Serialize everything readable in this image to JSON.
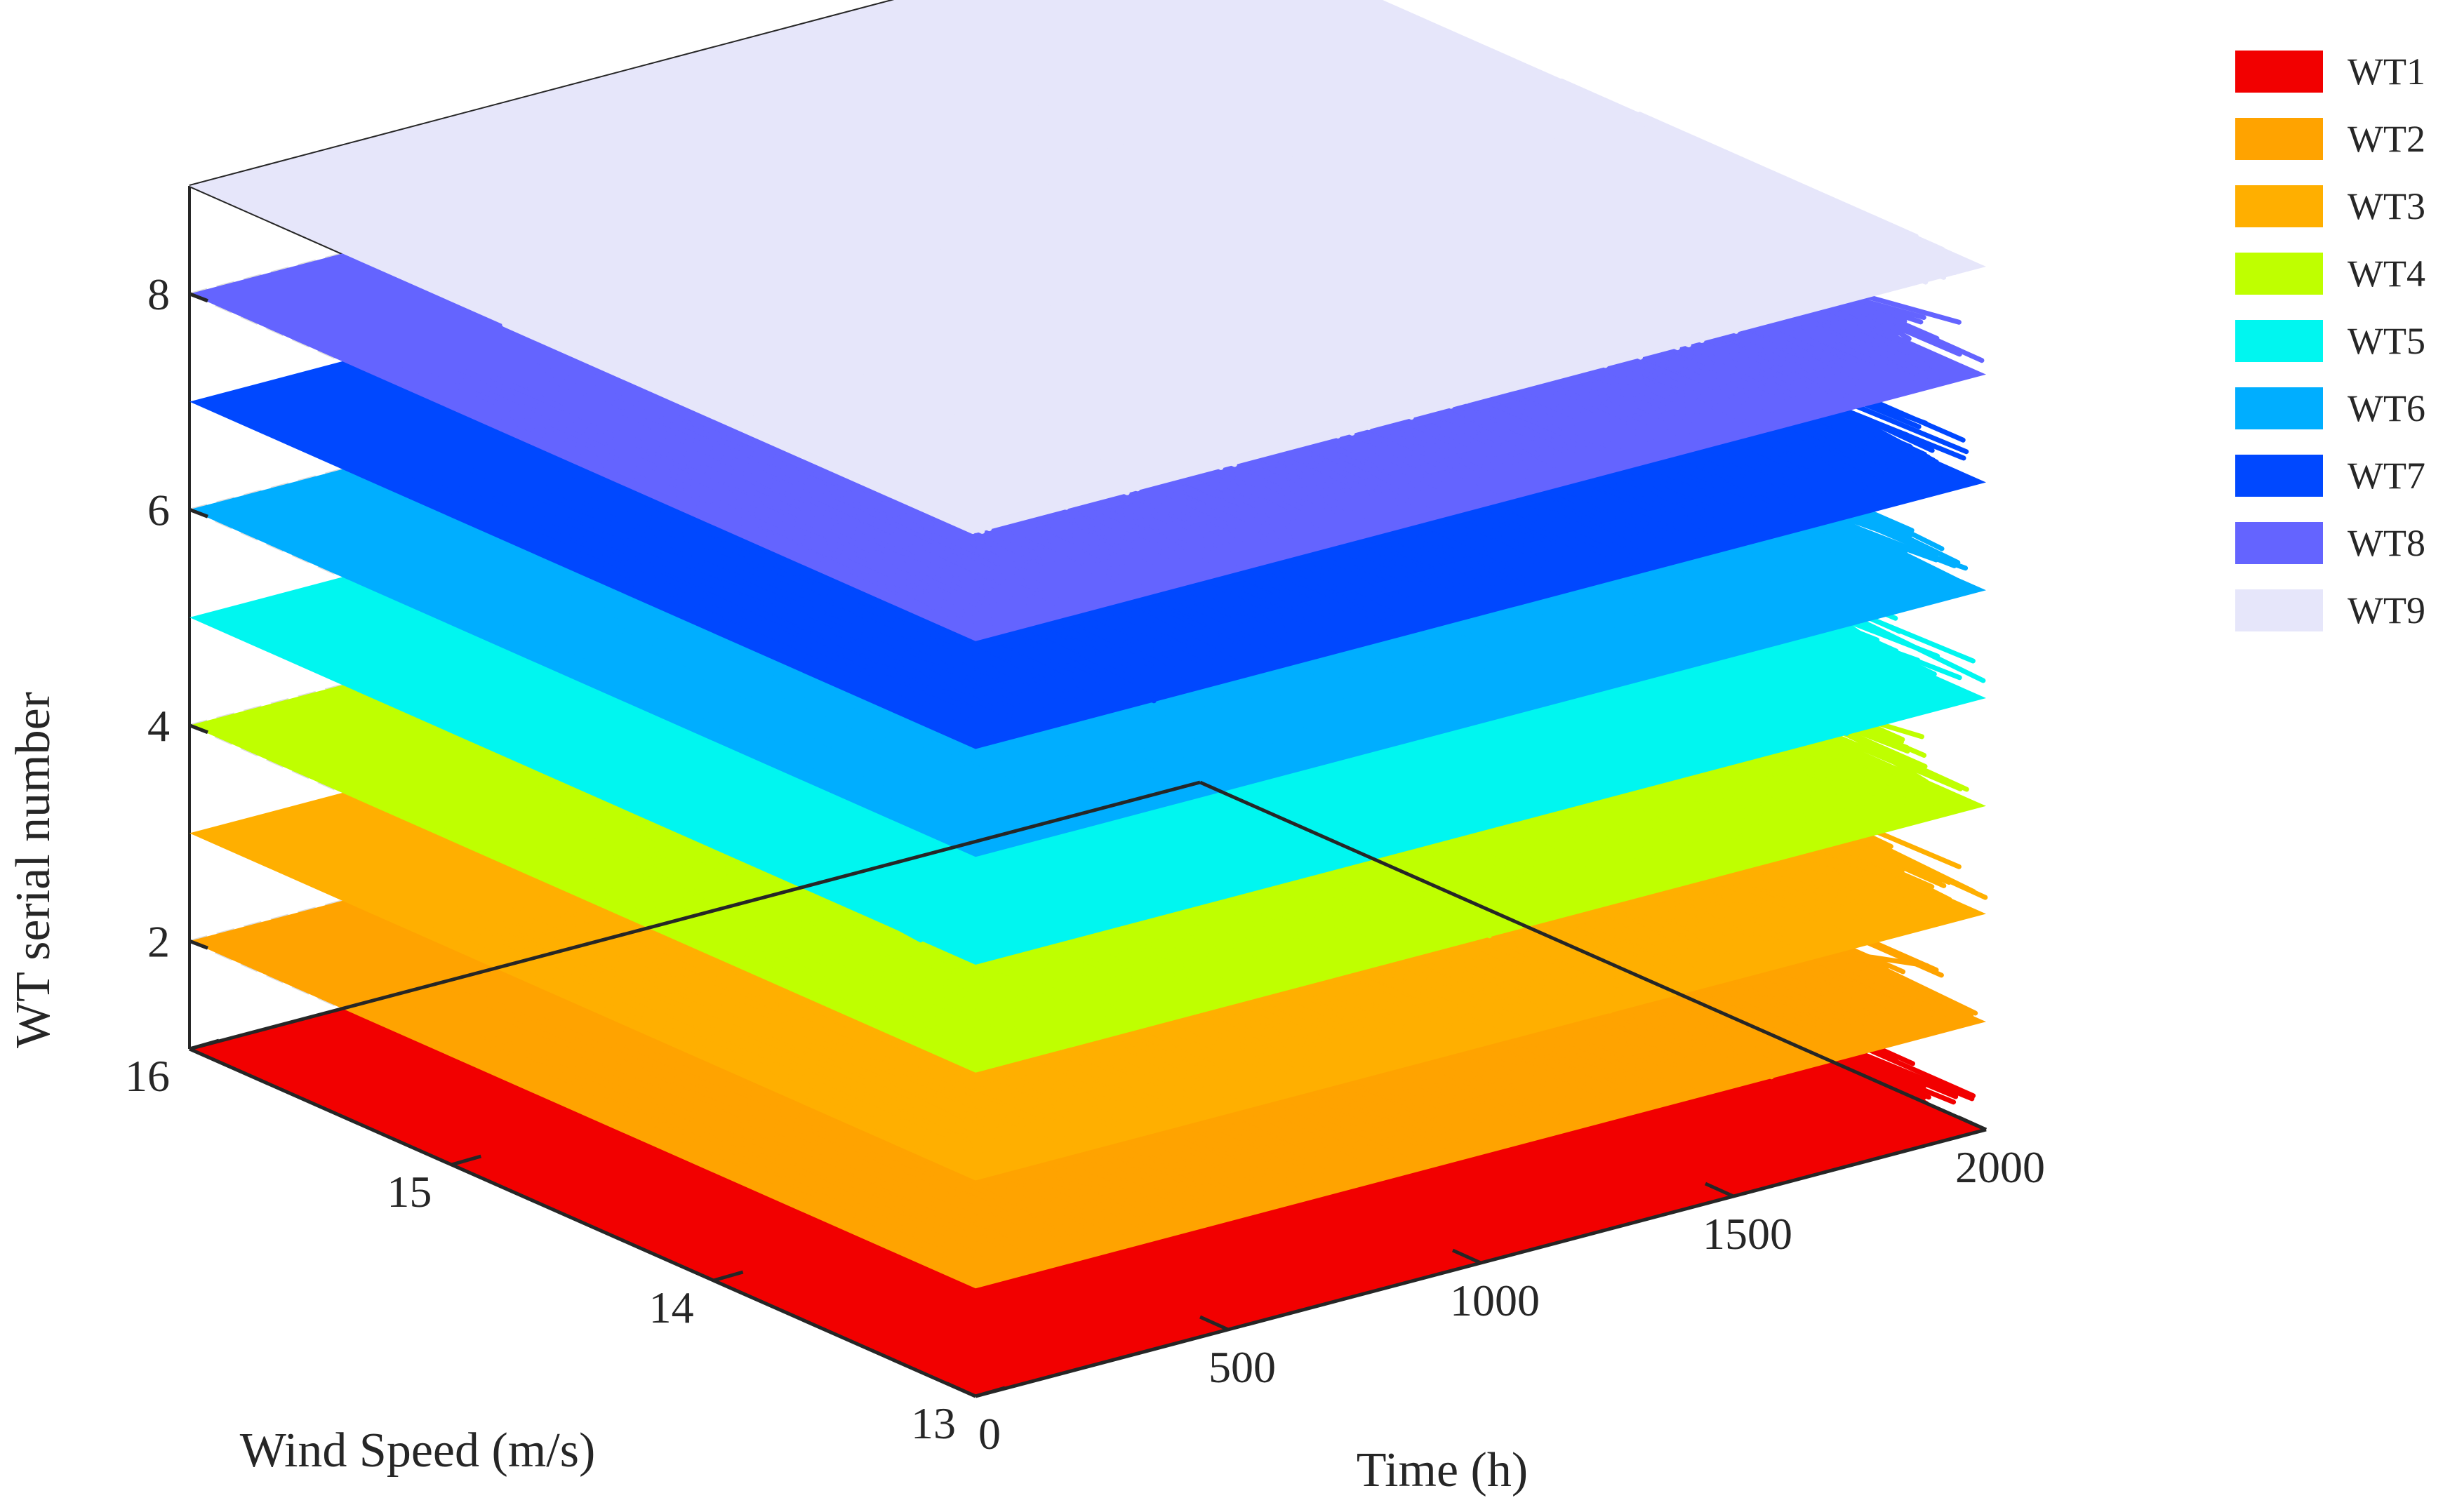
{
  "chart_data": {
    "type": "3d-line-ribbons",
    "xlabel": "Time (h)",
    "ylabel": "Wind Speed (m/s)",
    "zlabel": "WT serial number",
    "x_ticks": [
      0,
      500,
      1000,
      1500,
      2000
    ],
    "x_tick_labels": [
      "0",
      "500",
      "1000",
      "1500",
      "2000"
    ],
    "y_ticks": [
      13,
      14,
      15,
      16
    ],
    "y_tick_labels": [
      "13",
      "14",
      "15",
      "16"
    ],
    "z_ticks": [
      2,
      4,
      6,
      8
    ],
    "z_tick_labels": [
      "2",
      "4",
      "6",
      "8"
    ],
    "xlim": [
      0,
      2000
    ],
    "ylim": [
      13,
      16
    ],
    "zlim": [
      1,
      9
    ],
    "grid": true,
    "legend_position": "outside-right-top",
    "series": [
      {
        "name": "WT1",
        "color": "#F20000",
        "z": 1,
        "wind_speed_range": [
          13.0,
          16.0
        ]
      },
      {
        "name": "WT2",
        "color": "#FFA300",
        "z": 2,
        "wind_speed_range": [
          13.0,
          16.0
        ]
      },
      {
        "name": "WT3",
        "color": "#FFAF00",
        "z": 3,
        "wind_speed_range": [
          13.0,
          16.0
        ]
      },
      {
        "name": "WT4",
        "color": "#BFFF00",
        "z": 4,
        "wind_speed_range": [
          13.0,
          16.0
        ]
      },
      {
        "name": "WT5",
        "color": "#00F6F0",
        "z": 5,
        "wind_speed_range": [
          13.0,
          16.0
        ]
      },
      {
        "name": "WT6",
        "color": "#00AEFF",
        "z": 6,
        "wind_speed_range": [
          13.0,
          16.0
        ]
      },
      {
        "name": "WT7",
        "color": "#0048FF",
        "z": 7,
        "wind_speed_range": [
          13.0,
          16.0
        ]
      },
      {
        "name": "WT8",
        "color": "#6464FF",
        "z": 8,
        "wind_speed_range": [
          13.0,
          16.0
        ]
      },
      {
        "name": "WT9",
        "color": "#E6E6FA",
        "z": 9,
        "wind_speed_range": [
          13.0,
          16.0
        ]
      }
    ]
  }
}
